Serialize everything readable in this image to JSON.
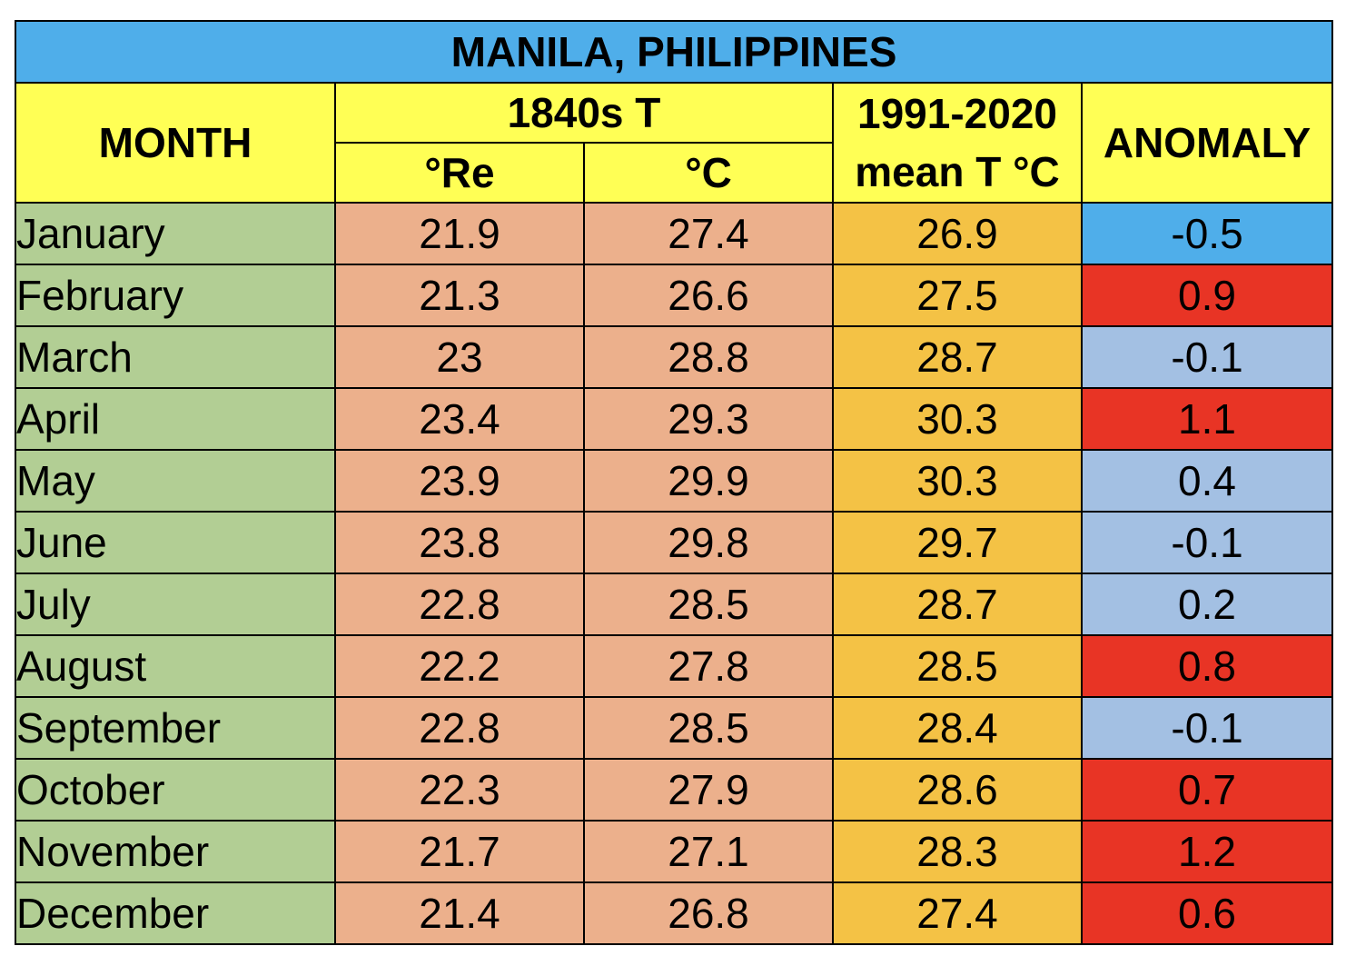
{
  "chart_data": {
    "type": "table",
    "title": "MANILA, PHILIPPINES",
    "headers": {
      "month": "MONTH",
      "group_1840s": "1840s T",
      "re": "°Re",
      "c": "°C",
      "mean_line1": "1991-2020",
      "mean_line2": "mean T °C",
      "anomaly": "ANOMALY"
    },
    "rows": [
      {
        "month": "January",
        "re": "21.9",
        "c": "27.4",
        "mean": "26.9",
        "anomaly": "-0.5",
        "anomaly_color": "#4faeea"
      },
      {
        "month": "February",
        "re": "21.3",
        "c": "26.6",
        "mean": "27.5",
        "anomaly": "0.9",
        "anomaly_color": "#e83425"
      },
      {
        "month": "March",
        "re": "23",
        "c": "28.8",
        "mean": "28.7",
        "anomaly": "-0.1",
        "anomaly_color": "#a3c0e3"
      },
      {
        "month": "April",
        "re": "23.4",
        "c": "29.3",
        "mean": "30.3",
        "anomaly": "1.1",
        "anomaly_color": "#e83425"
      },
      {
        "month": "May",
        "re": "23.9",
        "c": "29.9",
        "mean": "30.3",
        "anomaly": "0.4",
        "anomaly_color": "#a3c0e3"
      },
      {
        "month": "June",
        "re": "23.8",
        "c": "29.8",
        "mean": "29.7",
        "anomaly": "-0.1",
        "anomaly_color": "#a3c0e3"
      },
      {
        "month": "July",
        "re": "22.8",
        "c": "28.5",
        "mean": "28.7",
        "anomaly": "0.2",
        "anomaly_color": "#a3c0e3"
      },
      {
        "month": "August",
        "re": "22.2",
        "c": "27.8",
        "mean": "28.5",
        "anomaly": "0.8",
        "anomaly_color": "#e83425"
      },
      {
        "month": "September",
        "re": "22.8",
        "c": "28.5",
        "mean": "28.4",
        "anomaly": "-0.1",
        "anomaly_color": "#a3c0e3"
      },
      {
        "month": "October",
        "re": "22.3",
        "c": "27.9",
        "mean": "28.6",
        "anomaly": "0.7",
        "anomaly_color": "#e83425"
      },
      {
        "month": "November",
        "re": "21.7",
        "c": "27.1",
        "mean": "28.3",
        "anomaly": "1.2",
        "anomaly_color": "#e83425"
      },
      {
        "month": "December",
        "re": "21.4",
        "c": "26.8",
        "mean": "27.4",
        "anomaly": "0.6",
        "anomaly_color": "#e83425"
      }
    ],
    "colors": {
      "title_bg": "#4faeea",
      "header_bg": "#ffff55",
      "month_bg": "#b2ce94",
      "historic_bg": "#ecb08c",
      "mean_bg": "#f4c245"
    }
  }
}
